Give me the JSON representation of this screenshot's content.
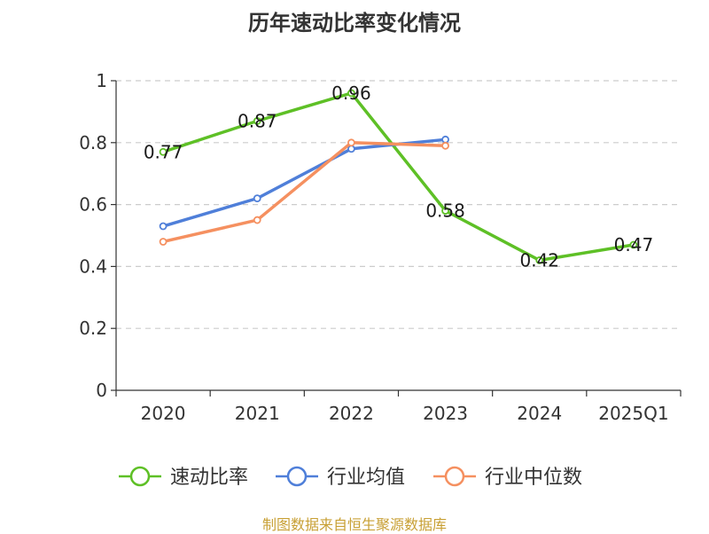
{
  "chart_data": {
    "type": "line",
    "title": "历年速动比率变化情况",
    "categories": [
      "2020",
      "2021",
      "2022",
      "2023",
      "2024",
      "2025Q1"
    ],
    "ylim": [
      0,
      1
    ],
    "yticks": [
      0,
      0.2,
      0.4,
      0.6,
      0.8,
      1
    ],
    "ytick_labels": [
      "0",
      "0.2",
      "0.4",
      "0.6",
      "0.8",
      "1"
    ],
    "grid": true,
    "legend": "bottom",
    "series": [
      {
        "name": "速动比率",
        "color": "#5ec026",
        "values": [
          0.77,
          0.87,
          0.96,
          0.58,
          0.42,
          0.47
        ],
        "labels": [
          "0.77",
          "0.87",
          "0.96",
          "0.58",
          "0.42",
          "0.47"
        ],
        "show_labels": true
      },
      {
        "name": "行业均值",
        "color": "#4f7fd9",
        "values": [
          0.53,
          0.62,
          0.78,
          0.81,
          null,
          null
        ],
        "show_labels": false
      },
      {
        "name": "行业中位数",
        "color": "#f59060",
        "values": [
          0.48,
          0.55,
          0.8,
          0.79,
          null,
          null
        ],
        "show_labels": false
      }
    ]
  },
  "source": "制图数据来自恒生聚源数据库"
}
